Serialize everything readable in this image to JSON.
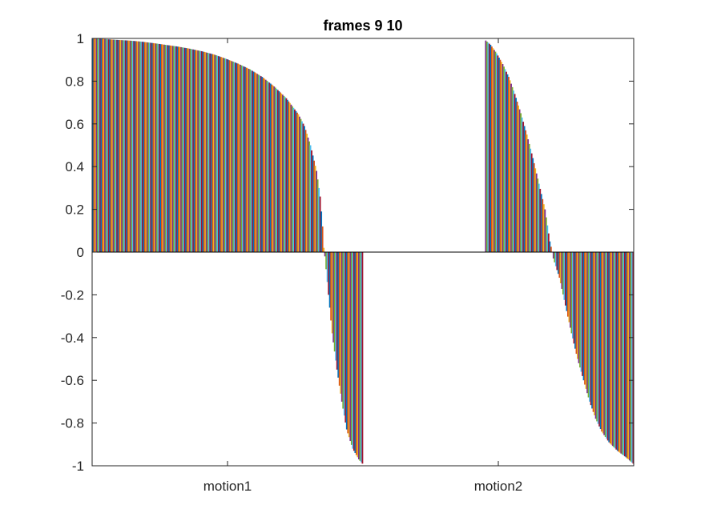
{
  "chart_data": {
    "type": "bar",
    "title": "frames 9 10",
    "xlabel": "",
    "ylabel": "",
    "ylim": [
      -1,
      1
    ],
    "yticks": [
      "1",
      "0.8",
      "0.6",
      "0.4",
      "0.2",
      "0",
      "-0.2",
      "-0.4",
      "-0.6",
      "-0.8",
      "-1"
    ],
    "grid": false,
    "categories": [
      "motion1",
      "motion2"
    ],
    "bar_colors": [
      "#0072BD",
      "#D95319",
      "#EDB120",
      "#7E2F8E",
      "#77AC30",
      "#4DBEEE",
      "#A2142F"
    ],
    "groups": [
      {
        "category": "motion1",
        "series_count": 224,
        "values_profile": [
          [
            0,
            1.0
          ],
          [
            10,
            0.997
          ],
          [
            20,
            0.993
          ],
          [
            30,
            0.99
          ],
          [
            40,
            0.985
          ],
          [
            50,
            0.978
          ],
          [
            60,
            0.97
          ],
          [
            70,
            0.962
          ],
          [
            80,
            0.952
          ],
          [
            90,
            0.94
          ],
          [
            100,
            0.925
          ],
          [
            110,
            0.905
          ],
          [
            120,
            0.882
          ],
          [
            130,
            0.855
          ],
          [
            140,
            0.82
          ],
          [
            150,
            0.775
          ],
          [
            160,
            0.72
          ],
          [
            170,
            0.645
          ],
          [
            175,
            0.59
          ],
          [
            180,
            0.5
          ],
          [
            185,
            0.38
          ],
          [
            188,
            0.26
          ],
          [
            190,
            0.12
          ],
          [
            191,
            0.02
          ],
          [
            192,
            -0.02
          ],
          [
            195,
            -0.2
          ],
          [
            198,
            -0.38
          ],
          [
            202,
            -0.55
          ],
          [
            206,
            -0.7
          ],
          [
            210,
            -0.83
          ],
          [
            215,
            -0.92
          ],
          [
            220,
            -0.97
          ],
          [
            223,
            -0.99
          ]
        ]
      },
      {
        "category": "motion2",
        "series_count": 224,
        "values_profile": [
          [
            0,
            0.0
          ],
          [
            100,
            0.0
          ],
          [
            101,
            0.99
          ],
          [
            105,
            0.97
          ],
          [
            110,
            0.93
          ],
          [
            115,
            0.88
          ],
          [
            120,
            0.82
          ],
          [
            125,
            0.74
          ],
          [
            130,
            0.65
          ],
          [
            135,
            0.55
          ],
          [
            140,
            0.44
          ],
          [
            145,
            0.32
          ],
          [
            150,
            0.2
          ],
          [
            154,
            0.05
          ],
          [
            156,
            0.0
          ],
          [
            157,
            -0.03
          ],
          [
            162,
            -0.12
          ],
          [
            167,
            -0.25
          ],
          [
            172,
            -0.38
          ],
          [
            177,
            -0.5
          ],
          [
            182,
            -0.6
          ],
          [
            187,
            -0.7
          ],
          [
            192,
            -0.78
          ],
          [
            197,
            -0.84
          ],
          [
            203,
            -0.89
          ],
          [
            210,
            -0.93
          ],
          [
            217,
            -0.96
          ],
          [
            223,
            -0.99
          ]
        ]
      }
    ]
  }
}
